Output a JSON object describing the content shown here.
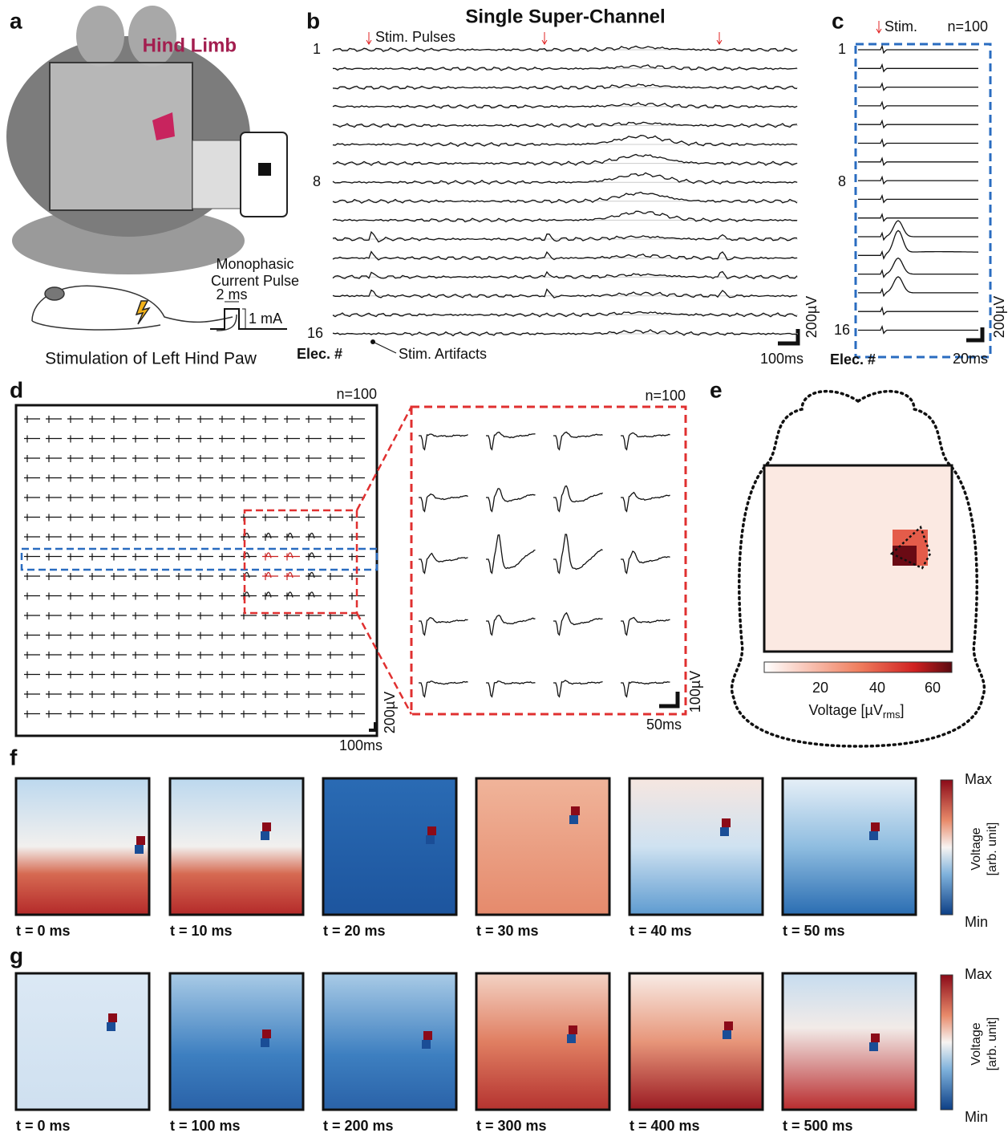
{
  "panel_a": {
    "label": "a",
    "region": "Hind Limb",
    "pulse_line1": "Monophasic",
    "pulse_line2": "Current Pulse",
    "width": "2 ms",
    "amplitude": "1 mA",
    "caption": "Stimulation of Left Hind Paw"
  },
  "panel_b": {
    "label": "b",
    "title": "Single Super-Channel",
    "stim": "Stim. Pulses",
    "rows": [
      "1",
      "8",
      "16"
    ],
    "axis": "Elec. #",
    "artifacts": "Stim. Artifacts",
    "time_scale": "100ms",
    "volt_scale": "200µV"
  },
  "panel_c": {
    "label": "c",
    "stim": "Stim.",
    "n": "n=100",
    "rows": [
      "1",
      "8",
      "16"
    ],
    "axis": "Elec. #",
    "time_scale": "20ms",
    "volt_scale": "200µV"
  },
  "panel_d": {
    "label": "d",
    "n": "n=100",
    "volt_scale": "200µV",
    "time_scale": "100ms",
    "zoom_n": "n=100",
    "zoom_volt_scale": "100µV",
    "zoom_time_scale": "50ms"
  },
  "panel_e": {
    "label": "e",
    "ticks": [
      "20",
      "40",
      "60"
    ],
    "colorbar_label": "Voltage [µV",
    "colorbar_sub": "rms",
    "colorbar_end": "]"
  },
  "panel_f": {
    "label": "f",
    "times": [
      "t = 0 ms",
      "t = 10 ms",
      "t = 20 ms",
      "t = 30 ms",
      "t = 40 ms",
      "t = 50 ms"
    ],
    "max": "Max",
    "min": "Min",
    "cb_title": "Voltage",
    "cb_unit": "[arb. unit]"
  },
  "panel_g": {
    "label": "g",
    "times": [
      "t = 0 ms",
      "t = 100 ms",
      "t = 200 ms",
      "t = 300 ms",
      "t = 400 ms",
      "t = 500 ms"
    ],
    "max": "Max",
    "min": "Min",
    "cb_title": "Voltage",
    "cb_unit": "[arb. unit]"
  }
}
